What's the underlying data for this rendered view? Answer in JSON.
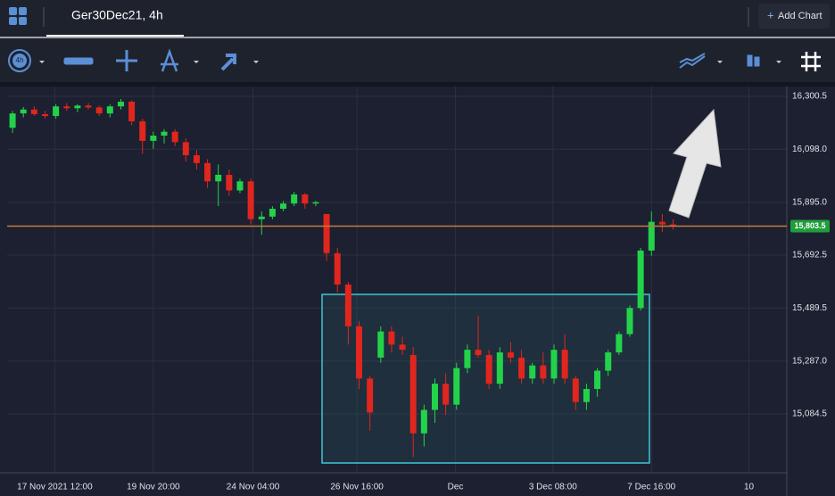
{
  "toolbar": {
    "tab": "Ger30Dec21, 4h",
    "add_chart": "Add Chart",
    "interval": "4h"
  },
  "chart_data": {
    "type": "candlestick",
    "open": [
      16180,
      16235,
      16250,
      16232,
      16225,
      16262,
      16255,
      16265,
      16258,
      16235,
      16262,
      16280,
      16205,
      16130,
      16150,
      16165,
      16125,
      16075,
      16045,
      15975,
      16000,
      15940,
      15975,
      15830,
      15840,
      15870,
      15890,
      15925,
      15890,
      15850,
      15700,
      15580,
      15420,
      15220,
      15300,
      15400,
      15350,
      15310,
      15010,
      15100,
      15200,
      15120,
      15260,
      15330,
      15310,
      15200,
      15320,
      15300,
      15220,
      15270,
      15220,
      15330,
      15220,
      15130,
      15180,
      15250,
      15320,
      15390,
      15490,
      15710,
      15820,
      15810
    ],
    "high": [
      16245,
      16260,
      16262,
      16245,
      16270,
      16275,
      16270,
      16275,
      16265,
      16270,
      16290,
      16285,
      16215,
      16165,
      16175,
      16175,
      16140,
      16095,
      16060,
      16040,
      16020,
      15985,
      15985,
      15860,
      15880,
      15900,
      15935,
      15930,
      15900,
      15850,
      15720,
      15590,
      15440,
      15230,
      15420,
      15420,
      15380,
      15340,
      15120,
      15220,
      15240,
      15280,
      15350,
      15460,
      15330,
      15340,
      15360,
      15330,
      15280,
      15320,
      15350,
      15390,
      15230,
      15200,
      15260,
      15330,
      15400,
      15500,
      15720,
      15860,
      15850,
      15830
    ],
    "low": [
      16160,
      16220,
      16225,
      16215,
      16215,
      16245,
      16240,
      16250,
      16225,
      16220,
      16250,
      16190,
      16080,
      16100,
      16120,
      16110,
      16050,
      16020,
      15950,
      15880,
      15920,
      15930,
      15810,
      15770,
      15830,
      15860,
      15880,
      15870,
      15880,
      15670,
      15550,
      15350,
      15180,
      15020,
      15280,
      15320,
      15310,
      14920,
      14960,
      15050,
      15080,
      15100,
      15240,
      15300,
      15180,
      15180,
      15280,
      15200,
      15200,
      15200,
      15200,
      15200,
      15100,
      15100,
      15150,
      15230,
      15310,
      15380,
      15480,
      15690,
      15780,
      15790
    ],
    "close": [
      16235,
      16250,
      16232,
      16225,
      16262,
      16255,
      16265,
      16258,
      16235,
      16262,
      16280,
      16205,
      16130,
      16150,
      16165,
      16125,
      16075,
      16045,
      15975,
      16000,
      15940,
      15975,
      15830,
      15840,
      15870,
      15890,
      15925,
      15890,
      15895,
      15700,
      15580,
      15420,
      15220,
      15090,
      15400,
      15350,
      15330,
      15010,
      15100,
      15200,
      15120,
      15260,
      15330,
      15310,
      15200,
      15320,
      15300,
      15220,
      15270,
      15220,
      15330,
      15220,
      15130,
      15180,
      15250,
      15320,
      15390,
      15490,
      15710,
      15820,
      15810,
      15803.5
    ],
    "up_color": "#22d34a",
    "down_color": "#e0261e",
    "xlim": [
      -0.5,
      71.5
    ],
    "xticks": [
      {
        "value": 3.9,
        "label": "17 Nov 2021 12:00"
      },
      {
        "value": 13.0,
        "label": "19 Nov 20:00"
      },
      {
        "value": 22.2,
        "label": "24 Nov 04:00"
      },
      {
        "value": 31.8,
        "label": "26 Nov 16:00"
      },
      {
        "value": 40.9,
        "label": "Dec"
      },
      {
        "value": 49.9,
        "label": "3 Dec 08:00"
      },
      {
        "value": 59.0,
        "label": "7 Dec 16:00"
      },
      {
        "value": 68.0,
        "label": "10"
      }
    ],
    "ylim": [
      14859,
      16338
    ],
    "yticks": [
      {
        "value": 16300.5,
        "label": "16,300.5"
      },
      {
        "value": 16098,
        "label": "16,098.0"
      },
      {
        "value": 15895,
        "label": "15,895.0"
      },
      {
        "value": 15692.5,
        "label": "15,692.5"
      },
      {
        "value": 15489.5,
        "label": "15,489.5"
      },
      {
        "value": 15287,
        "label": "15,287.0"
      },
      {
        "value": 15084.5,
        "label": "15,084.5"
      }
    ],
    "grid": true,
    "price_line": {
      "value": 15803.5,
      "label": "15,803.5",
      "color": "#c8793a",
      "label_color": "#1f9d3a"
    }
  }
}
